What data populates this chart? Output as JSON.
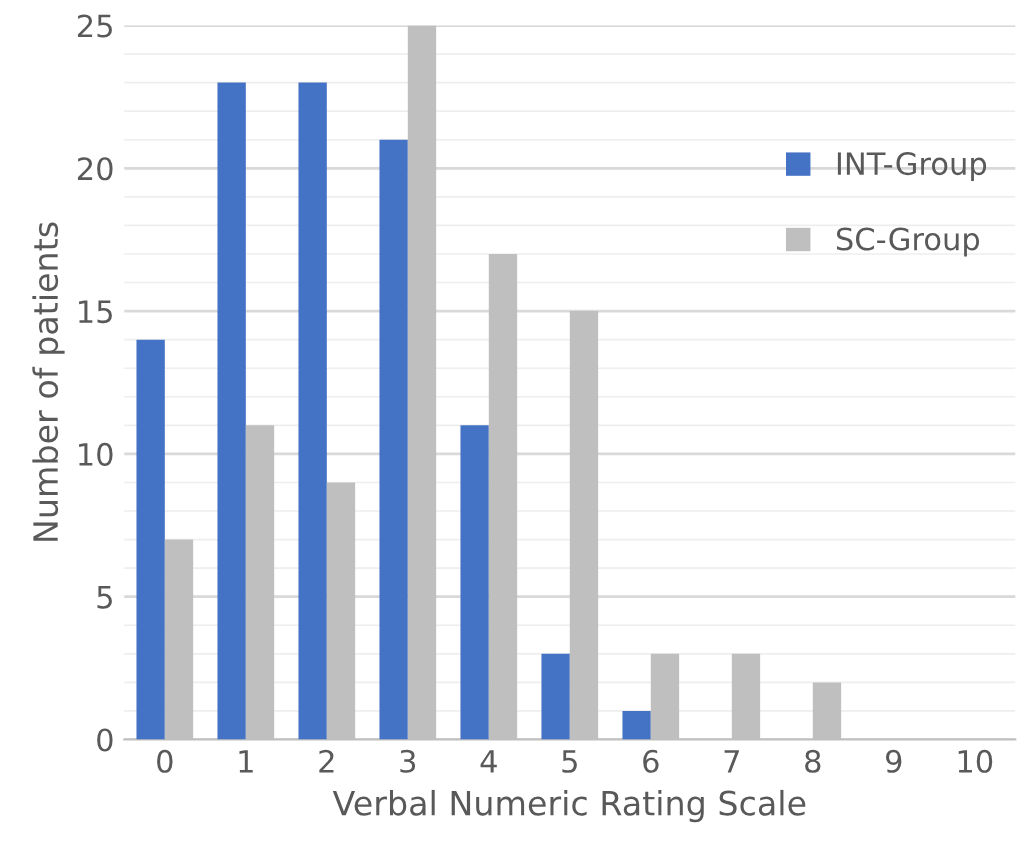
{
  "chart_data": {
    "type": "bar",
    "xlabel": "Verbal Numeric Rating Scale",
    "ylabel": "Number of patients",
    "categories": [
      "0",
      "1",
      "2",
      "3",
      "4",
      "5",
      "6",
      "7",
      "8",
      "9",
      "10"
    ],
    "series": [
      {
        "name": "INT-Group",
        "color": "#4472c4",
        "values": [
          14,
          23,
          23,
          21,
          11,
          3,
          1,
          0,
          0,
          0,
          0
        ]
      },
      {
        "name": "SC-Group",
        "color": "#bfbfbf",
        "values": [
          7,
          11,
          9,
          25,
          17,
          15,
          3,
          3,
          2,
          0,
          0
        ]
      }
    ],
    "ylim": [
      0,
      25
    ],
    "yticks": [
      0,
      5,
      10,
      15,
      20,
      25
    ],
    "grid": "y",
    "legend": "right"
  }
}
